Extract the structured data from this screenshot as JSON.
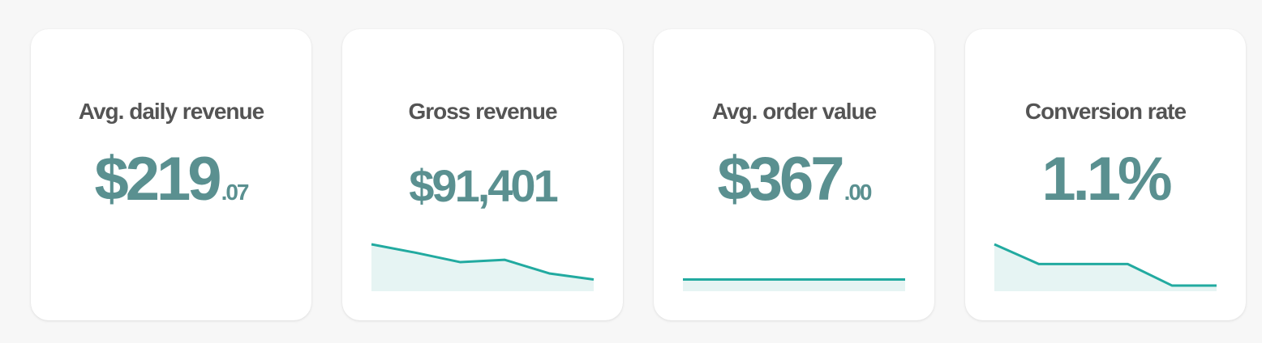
{
  "colors": {
    "background": "#f7f7f7",
    "card": "#ffffff",
    "title": "#545454",
    "value": "#5a9090",
    "sparkline_stroke": "#22aaa0",
    "sparkline_fill": "#e6f4f3"
  },
  "cards": [
    {
      "title": "Avg. daily revenue",
      "value_main": "$219",
      "value_cents": ".07",
      "sparkline": null
    },
    {
      "title": "Gross revenue",
      "value_main": "$91,401",
      "value_cents": "",
      "sparkline": {
        "values": [
          100,
          82,
          62,
          67,
          38,
          25
        ],
        "ylim": [
          0,
          100
        ]
      }
    },
    {
      "title": "Avg. order value",
      "value_main": "$367",
      "value_cents": ".00",
      "sparkline": {
        "values": [
          25,
          25,
          25,
          25,
          25,
          25
        ],
        "ylim": [
          0,
          100
        ]
      }
    },
    {
      "title": "Conversion rate",
      "value_main": "1.1%",
      "value_cents": "",
      "sparkline": {
        "values": [
          100,
          58,
          58,
          58,
          12,
          12
        ],
        "ylim": [
          0,
          100
        ]
      }
    }
  ]
}
